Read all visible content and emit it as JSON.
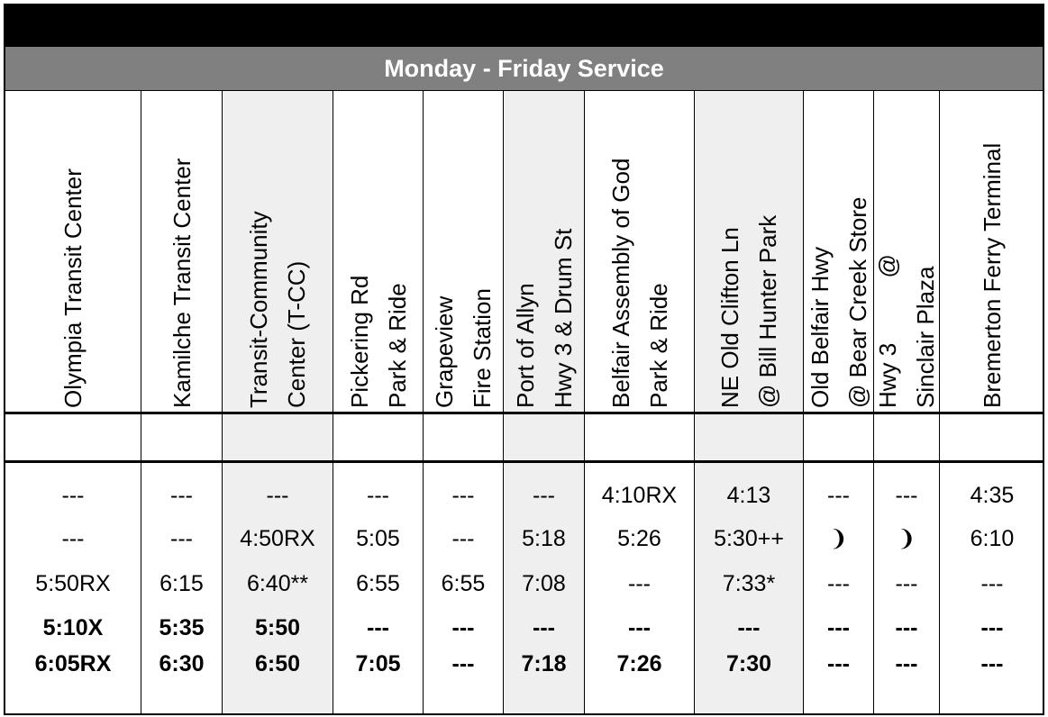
{
  "title": "Monday - Friday Service",
  "columns": [
    {
      "header": [
        "Olympia Transit Center"
      ],
      "shaded": false
    },
    {
      "header": [
        "Kamilche Transit Center"
      ],
      "shaded": false
    },
    {
      "header": [
        "Transit-Community",
        "Center (T-CC)"
      ],
      "shaded": true
    },
    {
      "header": [
        "Pickering Rd",
        "Park & Ride"
      ],
      "shaded": false
    },
    {
      "header": [
        "Grapeview",
        "Fire Station"
      ],
      "shaded": false
    },
    {
      "header": [
        "Port of Allyn",
        "Hwy 3 & Drum St"
      ],
      "shaded": true
    },
    {
      "header": [
        "Belfair Assembly of God",
        "Park & Ride"
      ],
      "shaded": false
    },
    {
      "header": [
        "NE Old Clifton Ln",
        "@ Bill Hunter Park"
      ],
      "shaded": true
    },
    {
      "header": [
        "Old Belfair Hwy",
        "@ Bear Creek Store"
      ],
      "shaded": false
    },
    {
      "header": [
        "Hwy 3          @",
        "Sinclair Plaza"
      ],
      "shaded": false
    },
    {
      "header": [
        "Bremerton Ferry Terminal"
      ],
      "shaded": false
    }
  ],
  "rows": [
    {
      "bold": false,
      "cells": [
        "---",
        "---",
        "---",
        "---",
        "---",
        "---",
        "4:10RX",
        "4:13",
        "---",
        "---",
        "4:35"
      ]
    },
    {
      "bold": false,
      "cells": [
        "---",
        "---",
        "4:50RX",
        "5:05",
        "---",
        "5:18",
        "5:26",
        "5:30++",
        "❩",
        "❩",
        "6:10"
      ]
    },
    {
      "bold": false,
      "cells": [
        "5:50RX",
        "6:15",
        "6:40**",
        "6:55",
        "6:55",
        "7:08",
        "---",
        "7:33*",
        "---",
        "---",
        "---"
      ]
    },
    {
      "bold": true,
      "cells": [
        "5:10X",
        "5:35",
        "5:50",
        "---",
        "---",
        "---",
        "---",
        "---",
        "---",
        "---",
        "---"
      ]
    },
    {
      "bold": true,
      "cells": [
        "6:05RX",
        "6:30",
        "6:50",
        "7:05",
        "---",
        "7:18",
        "7:26",
        "7:30",
        "---",
        "---",
        "---"
      ]
    }
  ]
}
